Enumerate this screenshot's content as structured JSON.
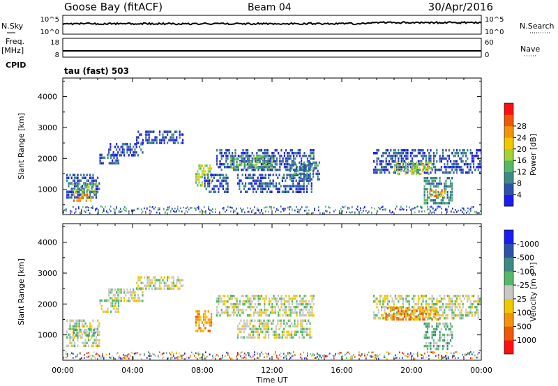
{
  "header": {
    "radar": "Goose Bay (fitACF)",
    "beam": "Beam 04",
    "date": "30/Apr/2016"
  },
  "strips": {
    "nsky": {
      "label": "N.Sky",
      "ticks_left": [
        "10^5",
        "10^0"
      ],
      "ticks_right": [
        "10^5",
        "10^0"
      ],
      "right_label": "N.Search"
    },
    "freq": {
      "label": "Freq.",
      "unit": "[MHz]",
      "ticks_left": [
        "18",
        "8"
      ],
      "ticks_right": [
        "60",
        "0"
      ],
      "right_label": "Nave"
    },
    "cpid": {
      "label": "CPID",
      "value": "tau (fast) 503"
    }
  },
  "chart_data": [
    {
      "type": "heatmap",
      "name": "power-panel",
      "ylabel": "Slant Range [km]",
      "xlabel": "",
      "xlim": [
        0,
        24
      ],
      "ylim": [
        180,
        4600
      ],
      "yticks": [
        1000,
        2000,
        3000,
        4000
      ],
      "colorbar": {
        "label": "Power [dB]",
        "ticks": [
          "4",
          "8",
          "12",
          "16",
          "20",
          "24",
          "28"
        ],
        "levels": [
          "#1c1cee",
          "#2f52a8",
          "#3d8a82",
          "#54b868",
          "#a2d234",
          "#f0c800",
          "#f39408",
          "#ee5806",
          "#ff1010"
        ]
      },
      "echo_regions": [
        {
          "t": [
            0.2,
            2.1
          ],
          "r": [
            750,
            1500
          ],
          "level": 1
        },
        {
          "t": [
            0.4,
            1.9
          ],
          "r": [
            900,
            1200
          ],
          "level": 3
        },
        {
          "t": [
            0.6,
            1.6
          ],
          "r": [
            600,
            850
          ],
          "level": 6
        },
        {
          "t": [
            2.1,
            3.2
          ],
          "r": [
            1800,
            2150
          ],
          "level": 1
        },
        {
          "t": [
            2.6,
            4.6
          ],
          "r": [
            2100,
            2500
          ],
          "level": 1
        },
        {
          "t": [
            4.2,
            6.9
          ],
          "r": [
            2450,
            2900
          ],
          "level": 1
        },
        {
          "t": [
            7.6,
            8.5
          ],
          "r": [
            1100,
            1800
          ],
          "level": 4
        },
        {
          "t": [
            8.1,
            9.5
          ],
          "r": [
            900,
            1500
          ],
          "level": 1
        },
        {
          "t": [
            8.8,
            14.4
          ],
          "r": [
            1600,
            2300
          ],
          "level": 1
        },
        {
          "t": [
            9.5,
            12.0
          ],
          "r": [
            1700,
            2100
          ],
          "level": 3
        },
        {
          "t": [
            10.0,
            14.3
          ],
          "r": [
            950,
            1500
          ],
          "level": 1
        },
        {
          "t": [
            13.0,
            14.7
          ],
          "r": [
            1300,
            1900
          ],
          "level": 2
        },
        {
          "t": [
            17.8,
            24.0
          ],
          "r": [
            1500,
            2300
          ],
          "level": 1
        },
        {
          "t": [
            19.0,
            21.2
          ],
          "r": [
            1500,
            1900
          ],
          "level": 4
        },
        {
          "t": [
            20.7,
            22.3
          ],
          "r": [
            500,
            1400
          ],
          "level": 2
        },
        {
          "t": [
            21.0,
            21.9
          ],
          "r": [
            800,
            1000
          ],
          "level": 6
        }
      ]
    },
    {
      "type": "heatmap",
      "name": "velocity-panel",
      "ylabel": "Slant Range [km]",
      "xlabel": "Time UT",
      "xlim": [
        0,
        24
      ],
      "ylim": [
        180,
        4600
      ],
      "yticks": [
        1000,
        2000,
        3000,
        4000
      ],
      "xticks": [
        "00:00",
        "04:00",
        "08:00",
        "12:00",
        "16:00",
        "20:00",
        "00:00"
      ],
      "colorbar": {
        "label": "Velocity [m s⁻¹]",
        "ticks": [
          "1000",
          "500",
          "100",
          "25",
          "-25",
          "-100",
          "-500",
          "-1000"
        ],
        "levels": [
          "#1c1cee",
          "#2f52a8",
          "#3d8a82",
          "#54b868",
          "#c8c8c4",
          "#f0c800",
          "#f39408",
          "#ee5806",
          "#ff1010"
        ]
      },
      "echo_regions": [
        {
          "t": [
            0.2,
            2.1
          ],
          "r": [
            600,
            1500
          ],
          "level": 4
        },
        {
          "t": [
            0.6,
            2.0
          ],
          "r": [
            1000,
            1200
          ],
          "level": 3
        },
        {
          "t": [
            2.1,
            3.2
          ],
          "r": [
            1700,
            2150
          ],
          "level": 4
        },
        {
          "t": [
            2.6,
            4.6
          ],
          "r": [
            2100,
            2500
          ],
          "level": 4
        },
        {
          "t": [
            4.2,
            6.9
          ],
          "r": [
            2450,
            2900
          ],
          "level": 4
        },
        {
          "t": [
            7.6,
            8.5
          ],
          "r": [
            1100,
            1800
          ],
          "level": 6
        },
        {
          "t": [
            8.8,
            14.4
          ],
          "r": [
            1600,
            2300
          ],
          "level": 4
        },
        {
          "t": [
            10.0,
            14.3
          ],
          "r": [
            950,
            1500
          ],
          "level": 4
        },
        {
          "t": [
            17.8,
            24.0
          ],
          "r": [
            1500,
            2300
          ],
          "level": 4
        },
        {
          "t": [
            18.5,
            21.5
          ],
          "r": [
            1500,
            1900
          ],
          "level": 6
        },
        {
          "t": [
            20.7,
            22.3
          ],
          "r": [
            500,
            1400
          ],
          "level": 3
        }
      ]
    }
  ]
}
